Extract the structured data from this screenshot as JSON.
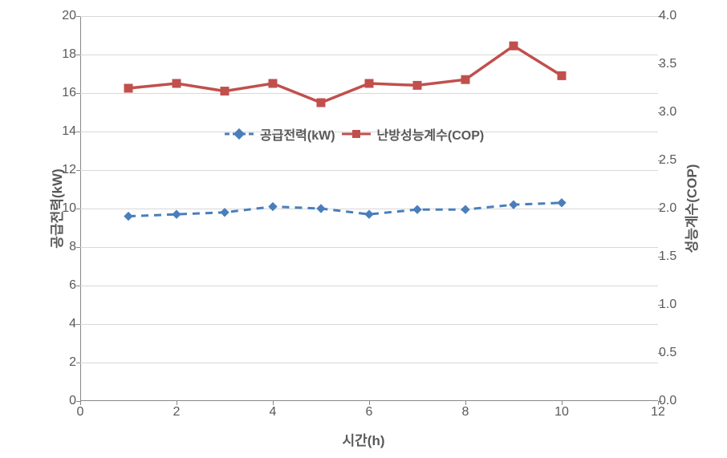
{
  "chart": {
    "type": "line-dual-axis",
    "background_color": "#ffffff",
    "grid_color": "#d8d8d8",
    "text_color": "#595959",
    "x": {
      "label": "시간(h)",
      "min": 0,
      "max": 12,
      "tick_step": 2,
      "ticks": [
        0,
        2,
        4,
        6,
        8,
        10,
        12
      ]
    },
    "y_left": {
      "label": "공급전력(kW)",
      "min": 0,
      "max": 20,
      "tick_step": 2,
      "ticks": [
        0,
        2,
        4,
        6,
        8,
        10,
        12,
        14,
        16,
        18,
        20
      ]
    },
    "y_right": {
      "label": "성능계수(COP)",
      "min": 0.0,
      "max": 4.0,
      "tick_step": 0.5,
      "ticks": [
        "0.0",
        "0.5",
        "1.0",
        "1.5",
        "2.0",
        "2.5",
        "3.0",
        "3.5",
        "4.0"
      ]
    },
    "series": {
      "power": {
        "name": "공급전력(kW)",
        "axis": "left",
        "color": "#4a7ebb",
        "line_style": "dashed",
        "line_width": 3,
        "marker": "diamond",
        "marker_size": 10,
        "marker_fill": "#4a7ebb",
        "x": [
          1,
          2,
          3,
          4,
          5,
          6,
          7,
          8,
          9,
          10
        ],
        "y": [
          9.6,
          9.7,
          9.8,
          10.1,
          10.0,
          9.7,
          9.95,
          9.95,
          10.2,
          10.3
        ]
      },
      "cop": {
        "name": "난방성능계수(COP)",
        "axis": "right",
        "color": "#c0504d",
        "line_style": "solid",
        "line_width": 3.5,
        "marker": "square",
        "marker_size": 10,
        "marker_fill": "#c0504d",
        "x": [
          1,
          2,
          3,
          4,
          5,
          6,
          7,
          8,
          9,
          10
        ],
        "y": [
          3.25,
          3.3,
          3.22,
          3.3,
          3.1,
          3.3,
          3.28,
          3.34,
          3.69,
          3.38
        ]
      }
    },
    "legend": {
      "items": [
        {
          "label": "공급전력(kW)",
          "series": "power"
        },
        {
          "label": "난방성능계수(COP)",
          "series": "cop"
        }
      ]
    },
    "label_fontsize": 17,
    "tick_fontsize": 16
  }
}
